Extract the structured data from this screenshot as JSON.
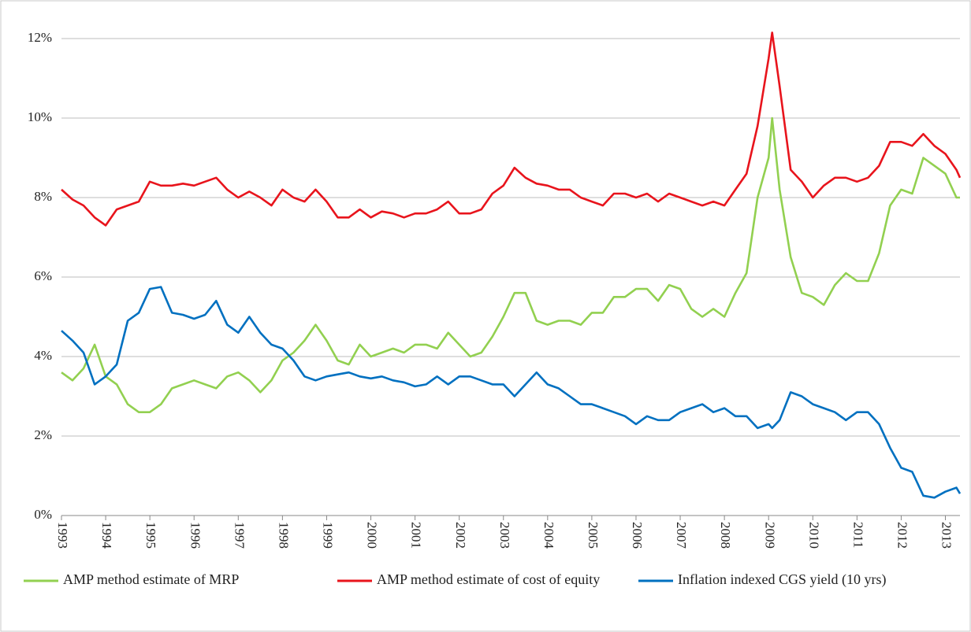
{
  "chart_data": {
    "type": "line",
    "x": [
      1993,
      1993.25,
      1993.5,
      1993.75,
      1994,
      1994.25,
      1994.5,
      1994.75,
      1995,
      1995.25,
      1995.5,
      1995.75,
      1996,
      1996.25,
      1996.5,
      1996.75,
      1997,
      1997.25,
      1997.5,
      1997.75,
      1998,
      1998.25,
      1998.5,
      1998.75,
      1999,
      1999.25,
      1999.5,
      1999.75,
      2000,
      2000.25,
      2000.5,
      2000.75,
      2001,
      2001.25,
      2001.5,
      2001.75,
      2002,
      2002.25,
      2002.5,
      2002.75,
      2003,
      2003.25,
      2003.5,
      2003.75,
      2004,
      2004.25,
      2004.5,
      2004.75,
      2005,
      2005.25,
      2005.5,
      2005.75,
      2006,
      2006.25,
      2006.5,
      2006.75,
      2007,
      2007.25,
      2007.5,
      2007.75,
      2008,
      2008.25,
      2008.5,
      2008.75,
      2009,
      2009.08,
      2009.25,
      2009.5,
      2009.75,
      2010,
      2010.25,
      2010.5,
      2010.75,
      2011,
      2011.25,
      2011.5,
      2011.75,
      2012,
      2012.25,
      2012.5,
      2012.75,
      2013,
      2013.25,
      2013.33
    ],
    "series": [
      {
        "name": "AMP method estimate of MRP",
        "color": "#92d050",
        "values": [
          3.6,
          3.4,
          3.7,
          4.3,
          3.5,
          3.3,
          2.8,
          2.6,
          2.6,
          2.8,
          3.2,
          3.3,
          3.4,
          3.3,
          3.2,
          3.5,
          3.6,
          3.4,
          3.1,
          3.4,
          3.9,
          4.1,
          4.4,
          4.8,
          4.4,
          3.9,
          3.8,
          4.3,
          4.0,
          4.1,
          4.2,
          4.1,
          4.3,
          4.3,
          4.2,
          4.6,
          4.3,
          4.0,
          4.1,
          4.5,
          5.0,
          5.6,
          5.6,
          4.9,
          4.8,
          4.9,
          4.9,
          4.8,
          5.1,
          5.1,
          5.5,
          5.5,
          5.7,
          5.7,
          5.4,
          5.8,
          5.7,
          5.2,
          5.0,
          5.2,
          5.0,
          5.6,
          6.1,
          8.0,
          9.0,
          10.0,
          8.2,
          6.5,
          5.6,
          5.5,
          5.3,
          5.8,
          6.1,
          5.9,
          5.9,
          6.6,
          7.8,
          8.2,
          8.1,
          9.0,
          8.8,
          8.6,
          8.0,
          8.0
        ]
      },
      {
        "name": "AMP method estimate of cost of equity",
        "color": "#e8141c",
        "values": [
          8.2,
          7.95,
          7.8,
          7.5,
          7.3,
          7.7,
          7.8,
          7.9,
          8.4,
          8.3,
          8.3,
          8.35,
          8.3,
          8.4,
          8.5,
          8.2,
          8.0,
          8.15,
          8.0,
          7.8,
          8.2,
          8.0,
          7.9,
          8.2,
          7.9,
          7.5,
          7.5,
          7.7,
          7.5,
          7.65,
          7.6,
          7.5,
          7.6,
          7.6,
          7.7,
          7.9,
          7.6,
          7.6,
          7.7,
          8.1,
          8.3,
          8.75,
          8.5,
          8.35,
          8.3,
          8.2,
          8.2,
          8.0,
          7.9,
          7.8,
          8.1,
          8.1,
          8.0,
          8.1,
          7.9,
          8.1,
          8.0,
          7.9,
          7.8,
          7.9,
          7.8,
          8.2,
          8.6,
          9.8,
          11.5,
          12.15,
          10.8,
          8.7,
          8.4,
          8.0,
          8.3,
          8.5,
          8.5,
          8.4,
          8.5,
          8.8,
          9.4,
          9.4,
          9.3,
          9.6,
          9.3,
          9.1,
          8.7,
          8.5
        ]
      },
      {
        "name": "Inflation indexed CGS yield (10 yrs)",
        "color": "#0070c0",
        "values": [
          4.65,
          4.4,
          4.1,
          3.3,
          3.5,
          3.8,
          4.9,
          5.1,
          5.7,
          5.75,
          5.1,
          5.05,
          4.95,
          5.05,
          5.4,
          4.8,
          4.6,
          5.0,
          4.6,
          4.3,
          4.2,
          3.9,
          3.5,
          3.4,
          3.5,
          3.55,
          3.6,
          3.5,
          3.45,
          3.5,
          3.4,
          3.35,
          3.25,
          3.3,
          3.5,
          3.3,
          3.5,
          3.5,
          3.4,
          3.3,
          3.3,
          3.0,
          3.3,
          3.6,
          3.3,
          3.2,
          3.0,
          2.8,
          2.8,
          2.7,
          2.6,
          2.5,
          2.3,
          2.5,
          2.4,
          2.4,
          2.6,
          2.7,
          2.8,
          2.6,
          2.7,
          2.5,
          2.5,
          2.2,
          2.3,
          2.2,
          2.4,
          3.1,
          3.0,
          2.8,
          2.7,
          2.6,
          2.4,
          2.6,
          2.6,
          2.3,
          1.7,
          1.2,
          1.1,
          0.5,
          0.45,
          0.6,
          0.7,
          0.55
        ]
      }
    ],
    "xlim": [
      1993,
      2013.33
    ],
    "xticks": [
      1993,
      1994,
      1995,
      1996,
      1997,
      1998,
      1999,
      2000,
      2001,
      2002,
      2003,
      2004,
      2005,
      2006,
      2007,
      2008,
      2009,
      2010,
      2011,
      2012,
      2013
    ],
    "ylim": [
      0,
      12
    ],
    "yticks": [
      {
        "value": 0,
        "label": "0%"
      },
      {
        "value": 2,
        "label": "2%"
      },
      {
        "value": 4,
        "label": "4%"
      },
      {
        "value": 6,
        "label": "6%"
      },
      {
        "value": 8,
        "label": "8%"
      },
      {
        "value": 10,
        "label": "10%"
      },
      {
        "value": 12,
        "label": "12%"
      }
    ],
    "grid": true,
    "legend": "bottom"
  }
}
